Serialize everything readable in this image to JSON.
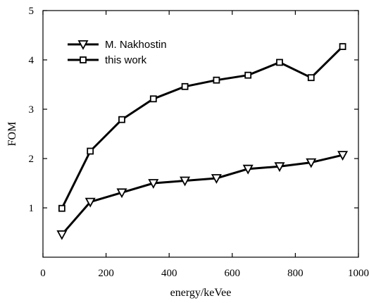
{
  "chart_data": {
    "type": "line",
    "title": "",
    "xlabel": "energy/keVee",
    "ylabel": "FOM",
    "xlim": [
      0,
      1000
    ],
    "ylim": [
      0,
      5
    ],
    "xticks": [
      0,
      200,
      400,
      600,
      800,
      1000
    ],
    "yticks": [
      1,
      2,
      3,
      4,
      5
    ],
    "grid": false,
    "legend_position": "top-left",
    "x": [
      60,
      150,
      250,
      350,
      450,
      550,
      650,
      750,
      850,
      950
    ],
    "series": [
      {
        "name": "M. Nakhostin",
        "marker": "triangle-down",
        "values": [
          0.46,
          1.12,
          1.31,
          1.5,
          1.55,
          1.6,
          1.79,
          1.84,
          1.92,
          2.07
        ]
      },
      {
        "name": "this work",
        "marker": "square",
        "values": [
          0.99,
          2.15,
          2.79,
          3.21,
          3.46,
          3.59,
          3.69,
          3.95,
          3.64,
          4.27
        ]
      }
    ]
  }
}
